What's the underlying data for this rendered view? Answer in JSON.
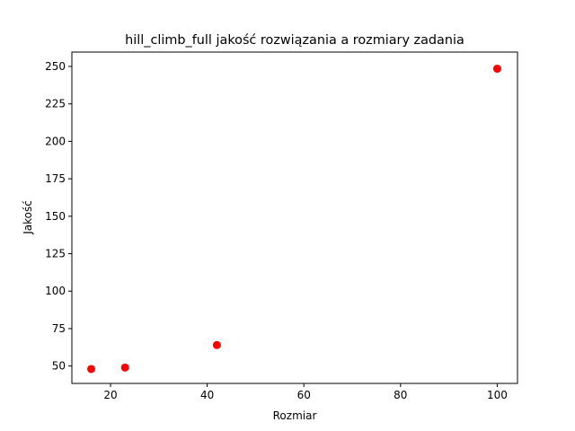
{
  "chart_data": {
    "type": "scatter",
    "title": "hill_climb_full jakość rozwiązania a rozmiary zadania",
    "xlabel": "Rozmiar",
    "ylabel": "Jakość",
    "xlim": [
      12,
      104.2
    ],
    "ylim": [
      38.4,
      259.6
    ],
    "xticks": [
      20,
      40,
      60,
      80,
      100
    ],
    "yticks": [
      50,
      75,
      100,
      125,
      150,
      175,
      200,
      225,
      250
    ],
    "grid": false,
    "series": [
      {
        "color": "#ff0000",
        "points": [
          {
            "x": 16,
            "y": 48
          },
          {
            "x": 23,
            "y": 49
          },
          {
            "x": 42,
            "y": 64
          },
          {
            "x": 100,
            "y": 248.5
          }
        ]
      }
    ]
  }
}
